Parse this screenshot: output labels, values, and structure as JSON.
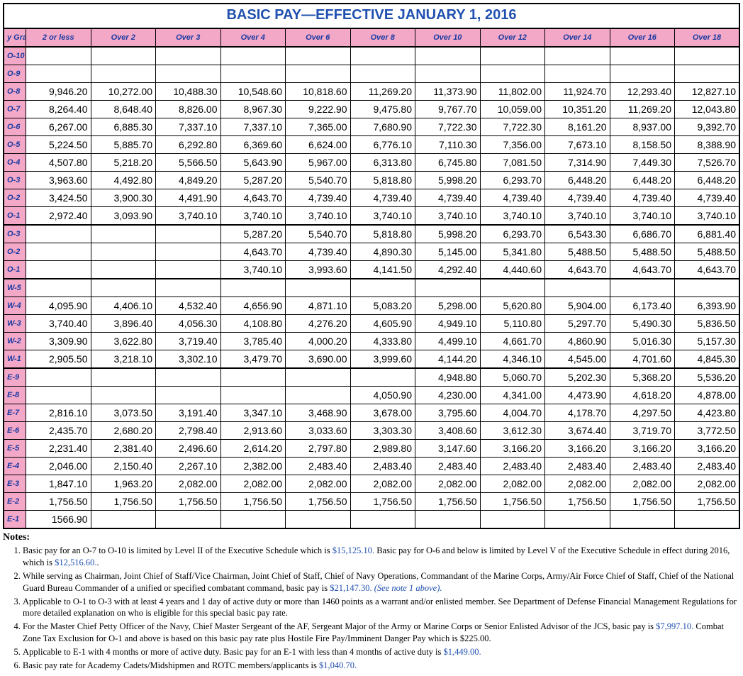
{
  "title": "BASIC PAY—EFFECTIVE JANUARY 1, 2016",
  "table": {
    "background_color": "#ffffff",
    "header_bg": "#f4a8c8",
    "header_fg": "#1a3aa0",
    "border_color": "#000000",
    "value_fontsize": 14,
    "header_fontsize": 11,
    "columns": [
      "y Gra",
      "2 or less",
      "Over 2",
      "Over 3",
      "Over 4",
      "Over 6",
      "Over 8",
      "Over 10",
      "Over 12",
      "Over 14",
      "Over 16",
      "Over 18"
    ],
    "rows": [
      {
        "grade": "O-10",
        "sep": true,
        "cells": [
          "",
          "",
          "",
          "",
          "",
          "",
          "",
          "",
          "",
          "",
          ""
        ]
      },
      {
        "grade": "O-9",
        "cells": [
          "",
          "",
          "",
          "",
          "",
          "",
          "",
          "",
          "",
          "",
          ""
        ]
      },
      {
        "grade": "O-8",
        "cells": [
          "9,946.20",
          "10,272.00",
          "10,488.30",
          "10,548.60",
          "10,818.60",
          "11,269.20",
          "11,373.90",
          "11,802.00",
          "11,924.70",
          "12,293.40",
          "12,827.10"
        ]
      },
      {
        "grade": "O-7",
        "cells": [
          "8,264.40",
          "8,648.40",
          "8,826.00",
          "8,967.30",
          "9,222.90",
          "9,475.80",
          "9,767.70",
          "10,059.00",
          "10,351.20",
          "11,269.20",
          "12,043.80"
        ]
      },
      {
        "grade": "O-6",
        "cells": [
          "6,267.00",
          "6,885.30",
          "7,337.10",
          "7,337.10",
          "7,365.00",
          "7,680.90",
          "7,722.30",
          "7,722.30",
          "8,161.20",
          "8,937.00",
          "9,392.70"
        ]
      },
      {
        "grade": "O-5",
        "cells": [
          "5,224.50",
          "5,885.70",
          "6,292.80",
          "6,369.60",
          "6,624.00",
          "6,776.10",
          "7,110.30",
          "7,356.00",
          "7,673.10",
          "8,158.50",
          "8,388.90"
        ]
      },
      {
        "grade": "O-4",
        "cells": [
          "4,507.80",
          "5,218.20",
          "5,566.50",
          "5,643.90",
          "5,967.00",
          "6,313.80",
          "6,745.80",
          "7,081.50",
          "7,314.90",
          "7,449.30",
          "7,526.70"
        ]
      },
      {
        "grade": "O-3",
        "cells": [
          "3,963.60",
          "4,492.80",
          "4,849.20",
          "5,287.20",
          "5,540.70",
          "5,818.80",
          "5,998.20",
          "6,293.70",
          "6,448.20",
          "6,448.20",
          "6,448.20"
        ]
      },
      {
        "grade": "O-2",
        "cells": [
          "3,424.50",
          "3,900.30",
          "4,491.90",
          "4,643.70",
          "4,739.40",
          "4,739.40",
          "4,739.40",
          "4,739.40",
          "4,739.40",
          "4,739.40",
          "4,739.40"
        ]
      },
      {
        "grade": "O-1",
        "cells": [
          "2,972.40",
          "3,093.90",
          "3,740.10",
          "3,740.10",
          "3,740.10",
          "3,740.10",
          "3,740.10",
          "3,740.10",
          "3,740.10",
          "3,740.10",
          "3,740.10"
        ]
      },
      {
        "grade": "O-3",
        "sep": true,
        "cells": [
          "",
          "",
          "",
          "5,287.20",
          "5,540.70",
          "5,818.80",
          "5,998.20",
          "6,293.70",
          "6,543.30",
          "6,686.70",
          "6,881.40"
        ]
      },
      {
        "grade": "O-2",
        "cells": [
          "",
          "",
          "",
          "4,643.70",
          "4,739.40",
          "4,890.30",
          "5,145.00",
          "5,341.80",
          "5,488.50",
          "5,488.50",
          "5,488.50"
        ]
      },
      {
        "grade": "O-1",
        "cells": [
          "",
          "",
          "",
          "3,740.10",
          "3,993.60",
          "4,141.50",
          "4,292.40",
          "4,440.60",
          "4,643.70",
          "4,643.70",
          "4,643.70"
        ]
      },
      {
        "grade": "W-5",
        "sep": true,
        "cells": [
          "",
          "",
          "",
          "",
          "",
          "",
          "",
          "",
          "",
          "",
          ""
        ]
      },
      {
        "grade": "W-4",
        "cells": [
          "4,095.90",
          "4,406.10",
          "4,532.40",
          "4,656.90",
          "4,871.10",
          "5,083.20",
          "5,298.00",
          "5,620.80",
          "5,904.00",
          "6,173.40",
          "6,393.90"
        ]
      },
      {
        "grade": "W-3",
        "cells": [
          "3,740.40",
          "3,896.40",
          "4,056.30",
          "4,108.80",
          "4,276.20",
          "4,605.90",
          "4,949.10",
          "5,110.80",
          "5,297.70",
          "5,490.30",
          "5,836.50"
        ]
      },
      {
        "grade": "W-2",
        "cells": [
          "3,309.90",
          "3,622.80",
          "3,719.40",
          "3,785.40",
          "4,000.20",
          "4,333.80",
          "4,499.10",
          "4,661.70",
          "4,860.90",
          "5,016.30",
          "5,157.30"
        ]
      },
      {
        "grade": "W-1",
        "cells": [
          "2,905.50",
          "3,218.10",
          "3,302.10",
          "3,479.70",
          "3,690.00",
          "3,999.60",
          "4,144.20",
          "4,346.10",
          "4,545.00",
          "4,701.60",
          "4,845.30"
        ]
      },
      {
        "grade": "E-9",
        "sep": true,
        "cells": [
          "",
          "",
          "",
          "",
          "",
          "",
          "4,948.80",
          "5,060.70",
          "5,202.30",
          "5,368.20",
          "5,536.20"
        ]
      },
      {
        "grade": "E-8",
        "cells": [
          "",
          "",
          "",
          "",
          "",
          "4,050.90",
          "4,230.00",
          "4,341.00",
          "4,473.90",
          "4,618.20",
          "4,878.00"
        ]
      },
      {
        "grade": "E-7",
        "cells": [
          "2,816.10",
          "3,073.50",
          "3,191.40",
          "3,347.10",
          "3,468.90",
          "3,678.00",
          "3,795.60",
          "4,004.70",
          "4,178.70",
          "4,297.50",
          "4,423.80"
        ]
      },
      {
        "grade": "E-6",
        "cells": [
          "2,435.70",
          "2,680.20",
          "2,798.40",
          "2,913.60",
          "3,033.60",
          "3,303.30",
          "3,408.60",
          "3,612.30",
          "3,674.40",
          "3,719.70",
          "3,772.50"
        ]
      },
      {
        "grade": "E-5",
        "cells": [
          "2,231.40",
          "2,381.40",
          "2,496.60",
          "2,614.20",
          "2,797.80",
          "2,989.80",
          "3,147.60",
          "3,166.20",
          "3,166.20",
          "3,166.20",
          "3,166.20"
        ]
      },
      {
        "grade": "E-4",
        "cells": [
          "2,046.00",
          "2,150.40",
          "2,267.10",
          "2,382.00",
          "2,483.40",
          "2,483.40",
          "2,483.40",
          "2,483.40",
          "2,483.40",
          "2,483.40",
          "2,483.40"
        ]
      },
      {
        "grade": "E-3",
        "cells": [
          "1,847.10",
          "1,963.20",
          "2,082.00",
          "2,082.00",
          "2,082.00",
          "2,082.00",
          "2,082.00",
          "2,082.00",
          "2,082.00",
          "2,082.00",
          "2,082.00"
        ]
      },
      {
        "grade": "E-2",
        "cells": [
          "1,756.50",
          "1,756.50",
          "1,756.50",
          "1,756.50",
          "1,756.50",
          "1,756.50",
          "1,756.50",
          "1,756.50",
          "1,756.50",
          "1,756.50",
          "1,756.50"
        ]
      },
      {
        "grade": "E-1",
        "cells": [
          "1566.90",
          "",
          "",
          "",
          "",
          "",
          "",
          "",
          "",
          "",
          ""
        ]
      }
    ]
  },
  "notes": {
    "heading": "Notes:",
    "items": [
      {
        "pre": "Basic pay for an O-7 to O-10 is limited by Level II of the Executive Schedule which is ",
        "b1": "$15,125.10.",
        "mid": "  Basic pay for O-6 and below is limited by Level V of the Executive Schedule in effect during 2016, which is ",
        "b2": "$12,516.60.",
        "post": "."
      },
      {
        "pre": "While serving as Chairman, Joint Chief of Staff/Vice Chairman, Joint Chief of Staff, Chief of Navy Operations, Commandant of the Marine Corps, Army/Air Force Chief of Staff, Chief of the National Guard Bureau Commander of a unified or specified combatant command, basic pay is ",
        "b1": "$21,147.30.",
        "mid": "  ",
        "it": "(See note 1 above).",
        "post": ""
      },
      {
        "pre": "Applicable to O-1 to O-3 with at least 4 years and 1 day of active duty or more than 1460 points as a warrant and/or enlisted member. See Department of Defense Financial Management Regulations for more detailed explanation on who is eligible for this special basic pay rate.",
        "post": ""
      },
      {
        "pre": "For the Master Chief Petty Officer of the Navy, Chief Master Sergeant of the AF, Sergeant Major of the Army or Marine Corps or Senior Enlisted Advisor of the JCS, basic pay is ",
        "b1": "$7,997.10.",
        "mid": "  Combat Zone Tax Exclusion for O-1 and above is based on this basic pay rate plus Hostile Fire Pay/Imminent Danger Pay which is $225.00.",
        "post": ""
      },
      {
        "pre": "Applicable to E-1 with 4 months or more of active duty.  Basic pay for an E-1 with less than 4 months of active duty is ",
        "b1": "$1,449.00.",
        "post": ""
      },
      {
        "pre": "Basic pay rate for Academy Cadets/Midshipmen and ROTC members/applicants is ",
        "b1": "$1,040.70.",
        "post": ""
      }
    ]
  }
}
